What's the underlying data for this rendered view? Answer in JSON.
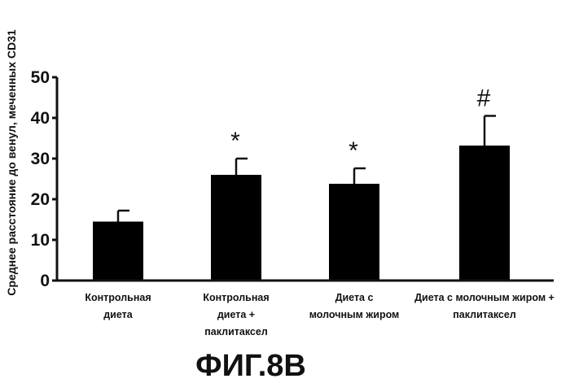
{
  "chart_data": {
    "type": "bar",
    "ylabel": "Среднее расстояние до венул, меченных CD31",
    "ylim": [
      0,
      50
    ],
    "yticks": [
      "0",
      "10",
      "20",
      "30",
      "40",
      "50"
    ],
    "categories": [
      [
        "Контрольная",
        "диета"
      ],
      [
        "Контрольная",
        "диета  +",
        "паклитаксел"
      ],
      [
        "Диета с",
        "молочным жиром"
      ],
      [
        "Диета с молочным жиром +",
        "паклитаксел"
      ]
    ],
    "values": [
      14.5,
      26.0,
      23.8,
      33.2
    ],
    "errors": [
      2.7,
      4.0,
      3.8,
      7.3
    ],
    "annotations": [
      "",
      "*",
      "*",
      "#"
    ],
    "bar_color": "#000000",
    "grid": false,
    "legend": "none"
  },
  "figure_label": "ФИГ.8B"
}
